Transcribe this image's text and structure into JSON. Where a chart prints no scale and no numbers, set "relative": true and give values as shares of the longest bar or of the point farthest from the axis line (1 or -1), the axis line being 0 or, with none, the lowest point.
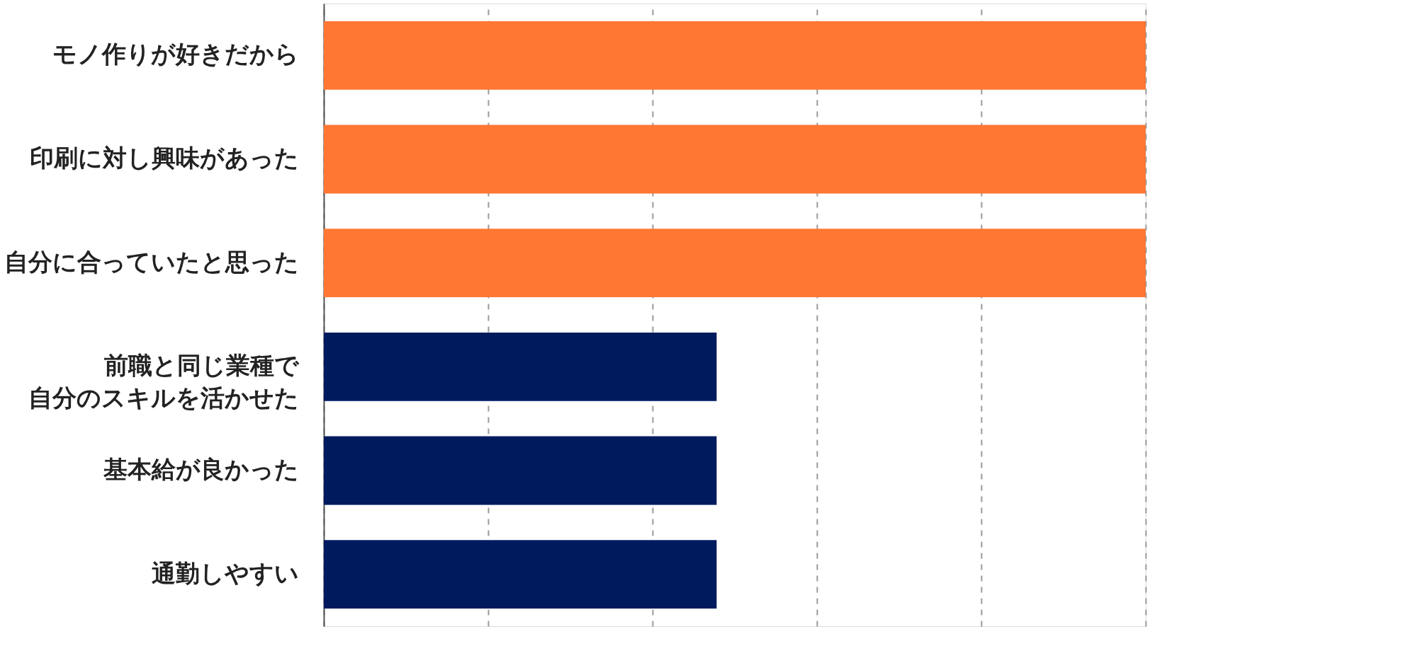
{
  "chart_data": {
    "type": "bar",
    "orientation": "horizontal",
    "relative": true,
    "grid": "x",
    "line_style": "dashed",
    "categories": [
      "モノ作りが好きだから",
      "印刷に対し興味があった",
      "自分に合っていたと思った",
      "前職と同じ業種で自分のスキルを活かせた",
      "基本給が良かった",
      "通勤しやすい"
    ],
    "values": [
      1,
      1,
      1,
      0.478,
      0.478,
      0.478
    ],
    "colors": [
      "#ff7733",
      "#ff7733",
      "#ff7733",
      "#001a5e",
      "#001a5e",
      "#001a5e"
    ]
  }
}
